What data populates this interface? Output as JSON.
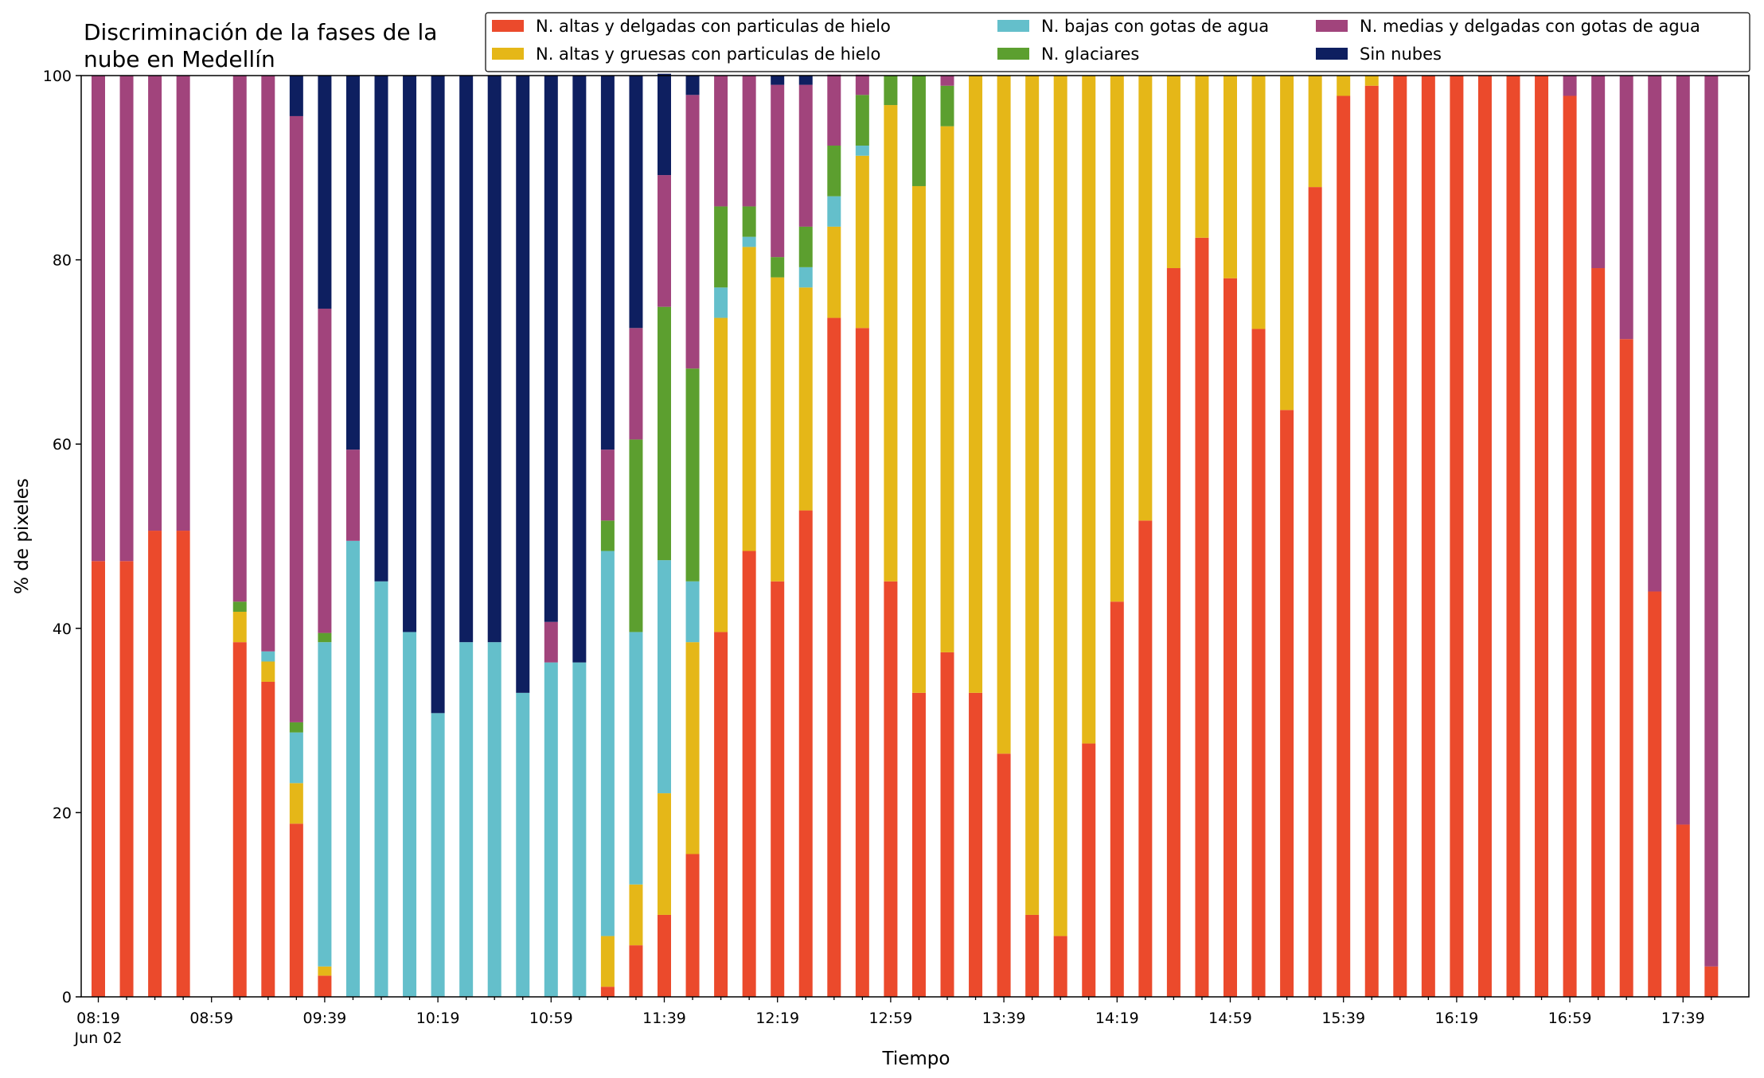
{
  "chart_data": {
    "type": "bar",
    "stacked": true,
    "title_line1": "Discriminación de la fases de la",
    "title_line2": "nube en Medellín",
    "xlabel": "Tiempo",
    "ylabel": "% de pixeles",
    "ylim": [
      0,
      100
    ],
    "yticks": [
      "0",
      "20",
      "40",
      "60",
      "80",
      "100"
    ],
    "xtick_labels": [
      "08:19",
      "08:59",
      "09:39",
      "10:19",
      "10:59",
      "11:39",
      "12:19",
      "12:59",
      "13:39",
      "14:19",
      "14:59",
      "15:39",
      "16:19",
      "16:59",
      "17:39"
    ],
    "date_label": "Jun 02",
    "grid": false,
    "legend_position": "top-right",
    "categories": [
      "08:19",
      "08:29",
      "08:39",
      "08:49",
      "08:59",
      "09:09",
      "09:19",
      "09:29",
      "09:39",
      "09:49",
      "09:59",
      "10:09",
      "10:19",
      "10:29",
      "10:39",
      "10:49",
      "10:59",
      "11:09",
      "11:19",
      "11:29",
      "11:39",
      "11:49",
      "11:59",
      "12:09",
      "12:19",
      "12:29",
      "12:39",
      "12:49",
      "12:59",
      "13:09",
      "13:19",
      "13:29",
      "13:39",
      "13:49",
      "13:59",
      "14:09",
      "14:19",
      "14:29",
      "14:39",
      "14:49",
      "14:59",
      "15:09",
      "15:19",
      "15:29",
      "15:39",
      "15:49",
      "15:59",
      "16:09",
      "16:19",
      "16:29",
      "16:39",
      "16:49",
      "16:59",
      "17:09",
      "17:19",
      "17:29",
      "17:39",
      "17:49"
    ],
    "series": [
      {
        "name": "N. altas y delgadas con particulas de hielo",
        "color": "#eb4a2c",
        "values": [
          47.3,
          47.3,
          50.6,
          50.6,
          0,
          38.5,
          34.2,
          18.8,
          2.3,
          0,
          0,
          0,
          0,
          0,
          0,
          0,
          0,
          0,
          1.1,
          5.6,
          8.9,
          15.5,
          39.6,
          48.4,
          45.1,
          52.8,
          73.7,
          72.6,
          45.1,
          33.0,
          37.4,
          33.0,
          26.4,
          8.9,
          6.6,
          27.5,
          42.9,
          51.7,
          79.1,
          82.4,
          78.0,
          72.5,
          63.7,
          87.9,
          97.8,
          98.9,
          100,
          100,
          100,
          100,
          100,
          100,
          97.8,
          79.1,
          71.4,
          44.0,
          18.7,
          3.3
        ]
      },
      {
        "name": "N. altas y gruesas con particulas de hielo",
        "color": "#e5b718",
        "values": [
          0,
          0,
          0,
          0,
          0,
          3.3,
          2.2,
          4.4,
          1.0,
          0,
          0,
          0,
          0,
          0,
          0,
          0,
          0,
          0,
          5.5,
          6.6,
          13.2,
          23.0,
          34.1,
          33.0,
          33.0,
          24.2,
          9.9,
          18.7,
          51.7,
          55.0,
          57.1,
          67.0,
          73.6,
          91.1,
          93.4,
          72.5,
          57.1,
          48.3,
          20.9,
          17.6,
          22.0,
          27.5,
          36.3,
          12.1,
          2.2,
          1.1,
          0,
          0,
          0,
          0,
          0,
          0,
          0,
          0,
          0,
          0,
          0,
          0
        ]
      },
      {
        "name": "N. bajas con gotas de agua",
        "color": "#64bfcb",
        "values": [
          0,
          0,
          0,
          0,
          0,
          0,
          1.1,
          5.5,
          35.2,
          49.5,
          45.1,
          39.6,
          30.8,
          38.5,
          38.5,
          33.0,
          36.3,
          36.3,
          41.8,
          27.4,
          25.3,
          6.6,
          3.3,
          1.1,
          0,
          2.2,
          3.3,
          1.1,
          0,
          0,
          0,
          0,
          0,
          0,
          0,
          0,
          0,
          0,
          0,
          0,
          0,
          0,
          0,
          0,
          0,
          0,
          0,
          0,
          0,
          0,
          0,
          0,
          0,
          0,
          0,
          0,
          0,
          0
        ]
      },
      {
        "name": "N. glaciares",
        "color": "#5c9f2f",
        "values": [
          0,
          0,
          0,
          0,
          0,
          1.1,
          0,
          1.1,
          1.0,
          0,
          0,
          0,
          0,
          0,
          0,
          0,
          0,
          0,
          3.3,
          20.9,
          27.5,
          23.1,
          8.8,
          3.3,
          2.2,
          4.4,
          5.5,
          5.5,
          3.2,
          12.0,
          4.4,
          0,
          0,
          0,
          0,
          0,
          0,
          0,
          0,
          0,
          0,
          0,
          0,
          0,
          0,
          0,
          0,
          0,
          0,
          0,
          0,
          0,
          0,
          0,
          0,
          0,
          0,
          0
        ]
      },
      {
        "name": "N. medias y delgadas con gotas de agua",
        "color": "#a1447c",
        "values": [
          52.7,
          52.7,
          49.4,
          49.4,
          0,
          57.1,
          62.5,
          65.8,
          35.2,
          9.9,
          0,
          0,
          0,
          0,
          0,
          0,
          4.4,
          0,
          7.7,
          12.1,
          14.3,
          29.7,
          14.2,
          14.2,
          18.7,
          15.4,
          7.7,
          2.2,
          0,
          0,
          1.1,
          0,
          0,
          0,
          0,
          0,
          0,
          0,
          0,
          0,
          0,
          0,
          0,
          0,
          0,
          0,
          0,
          0,
          0,
          0,
          0,
          0,
          2.2,
          20.9,
          28.6,
          56.0,
          81.3,
          96.7
        ]
      },
      {
        "name": "Sin nubes",
        "color": "#0e1f60",
        "values": [
          0,
          0,
          0,
          0,
          0,
          0,
          0,
          4.4,
          25.3,
          40.6,
          54.9,
          60.4,
          69.2,
          61.5,
          61.5,
          67.0,
          59.3,
          63.7,
          40.6,
          27.4,
          11.0,
          2.1,
          0,
          0,
          1.0,
          1.0,
          0,
          0,
          0,
          0,
          0,
          0,
          0,
          0,
          0,
          0,
          0,
          0,
          0,
          0,
          0,
          0,
          0,
          0,
          0,
          0,
          0,
          0,
          0,
          0,
          0,
          0,
          0,
          0,
          0,
          0,
          0,
          0
        ]
      }
    ]
  }
}
